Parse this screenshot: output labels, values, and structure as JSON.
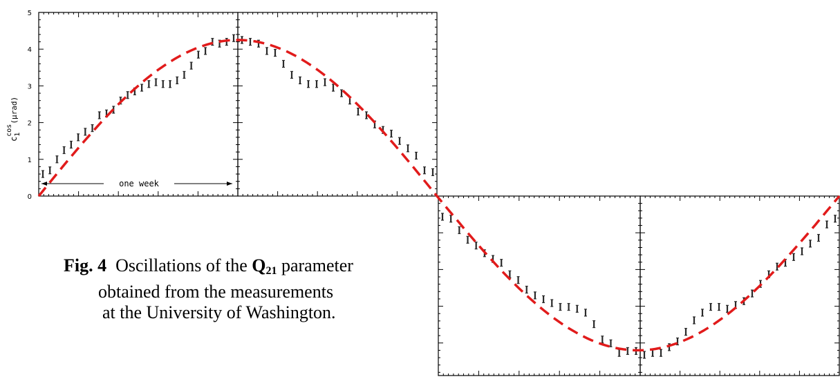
{
  "chart_data": {
    "type": "scatter",
    "ylabel_main": "c",
    "ylabel_sub": "1",
    "ylabel_sup": "cos",
    "ylabel_unit": "(μrad)",
    "y_ticks": [
      "0",
      "1",
      "2",
      "3",
      "4",
      "5"
    ],
    "ylim": [
      0,
      5
    ],
    "annotation": "one week",
    "curve_style": "dashed",
    "colors": {
      "curve": "#e11b1b",
      "points": "#2a2a2a",
      "frame": "#000000"
    },
    "panels": [
      {
        "y": [
          0.6,
          0.7,
          1.0,
          1.25,
          1.4,
          1.6,
          1.75,
          1.85,
          2.2,
          2.25,
          2.35,
          2.6,
          2.75,
          2.85,
          2.95,
          3.05,
          3.1,
          3.05,
          3.05,
          3.15,
          3.3,
          3.55,
          3.85,
          3.95,
          4.2,
          4.15,
          4.2,
          4.3
        ]
      },
      {
        "y": [
          4.25,
          4.2,
          4.15,
          3.95,
          3.9,
          3.6,
          3.3,
          3.15,
          3.05,
          3.05,
          3.1,
          2.95,
          2.8,
          2.6,
          2.3,
          2.2,
          1.95,
          1.8,
          1.7,
          1.5,
          1.3,
          1.1,
          0.7,
          0.65
        ]
      },
      {
        "y": [
          -0.6,
          -0.65,
          -0.95,
          -1.2,
          -1.35,
          -1.55,
          -1.7,
          -1.8,
          -2.1,
          -2.25,
          -2.5,
          -2.65,
          -2.75,
          -2.85,
          -2.95,
          -2.95,
          -3.0,
          -3.1,
          -3.4,
          -3.8,
          -3.9,
          -4.15,
          -4.1,
          -4.1
        ]
      },
      {
        "y": [
          -4.2,
          -4.15,
          -4.15,
          -4.0,
          -3.85,
          -3.6,
          -3.3,
          -3.1,
          -2.95,
          -2.95,
          -3.0,
          -2.9,
          -2.8,
          -2.6,
          -2.35,
          -2.1,
          -1.9,
          -1.8,
          -1.65,
          -1.5,
          -1.3,
          -1.15,
          -0.8,
          -0.65
        ]
      }
    ]
  },
  "caption": {
    "fig_label": "Fig. 4",
    "line1_text": "Oscillations of the ",
    "param_main": "Q",
    "param_sub": "21",
    "line1_tail": " parameter",
    "line2": "obtained from the measurements",
    "line3": "at the University of Washington."
  }
}
